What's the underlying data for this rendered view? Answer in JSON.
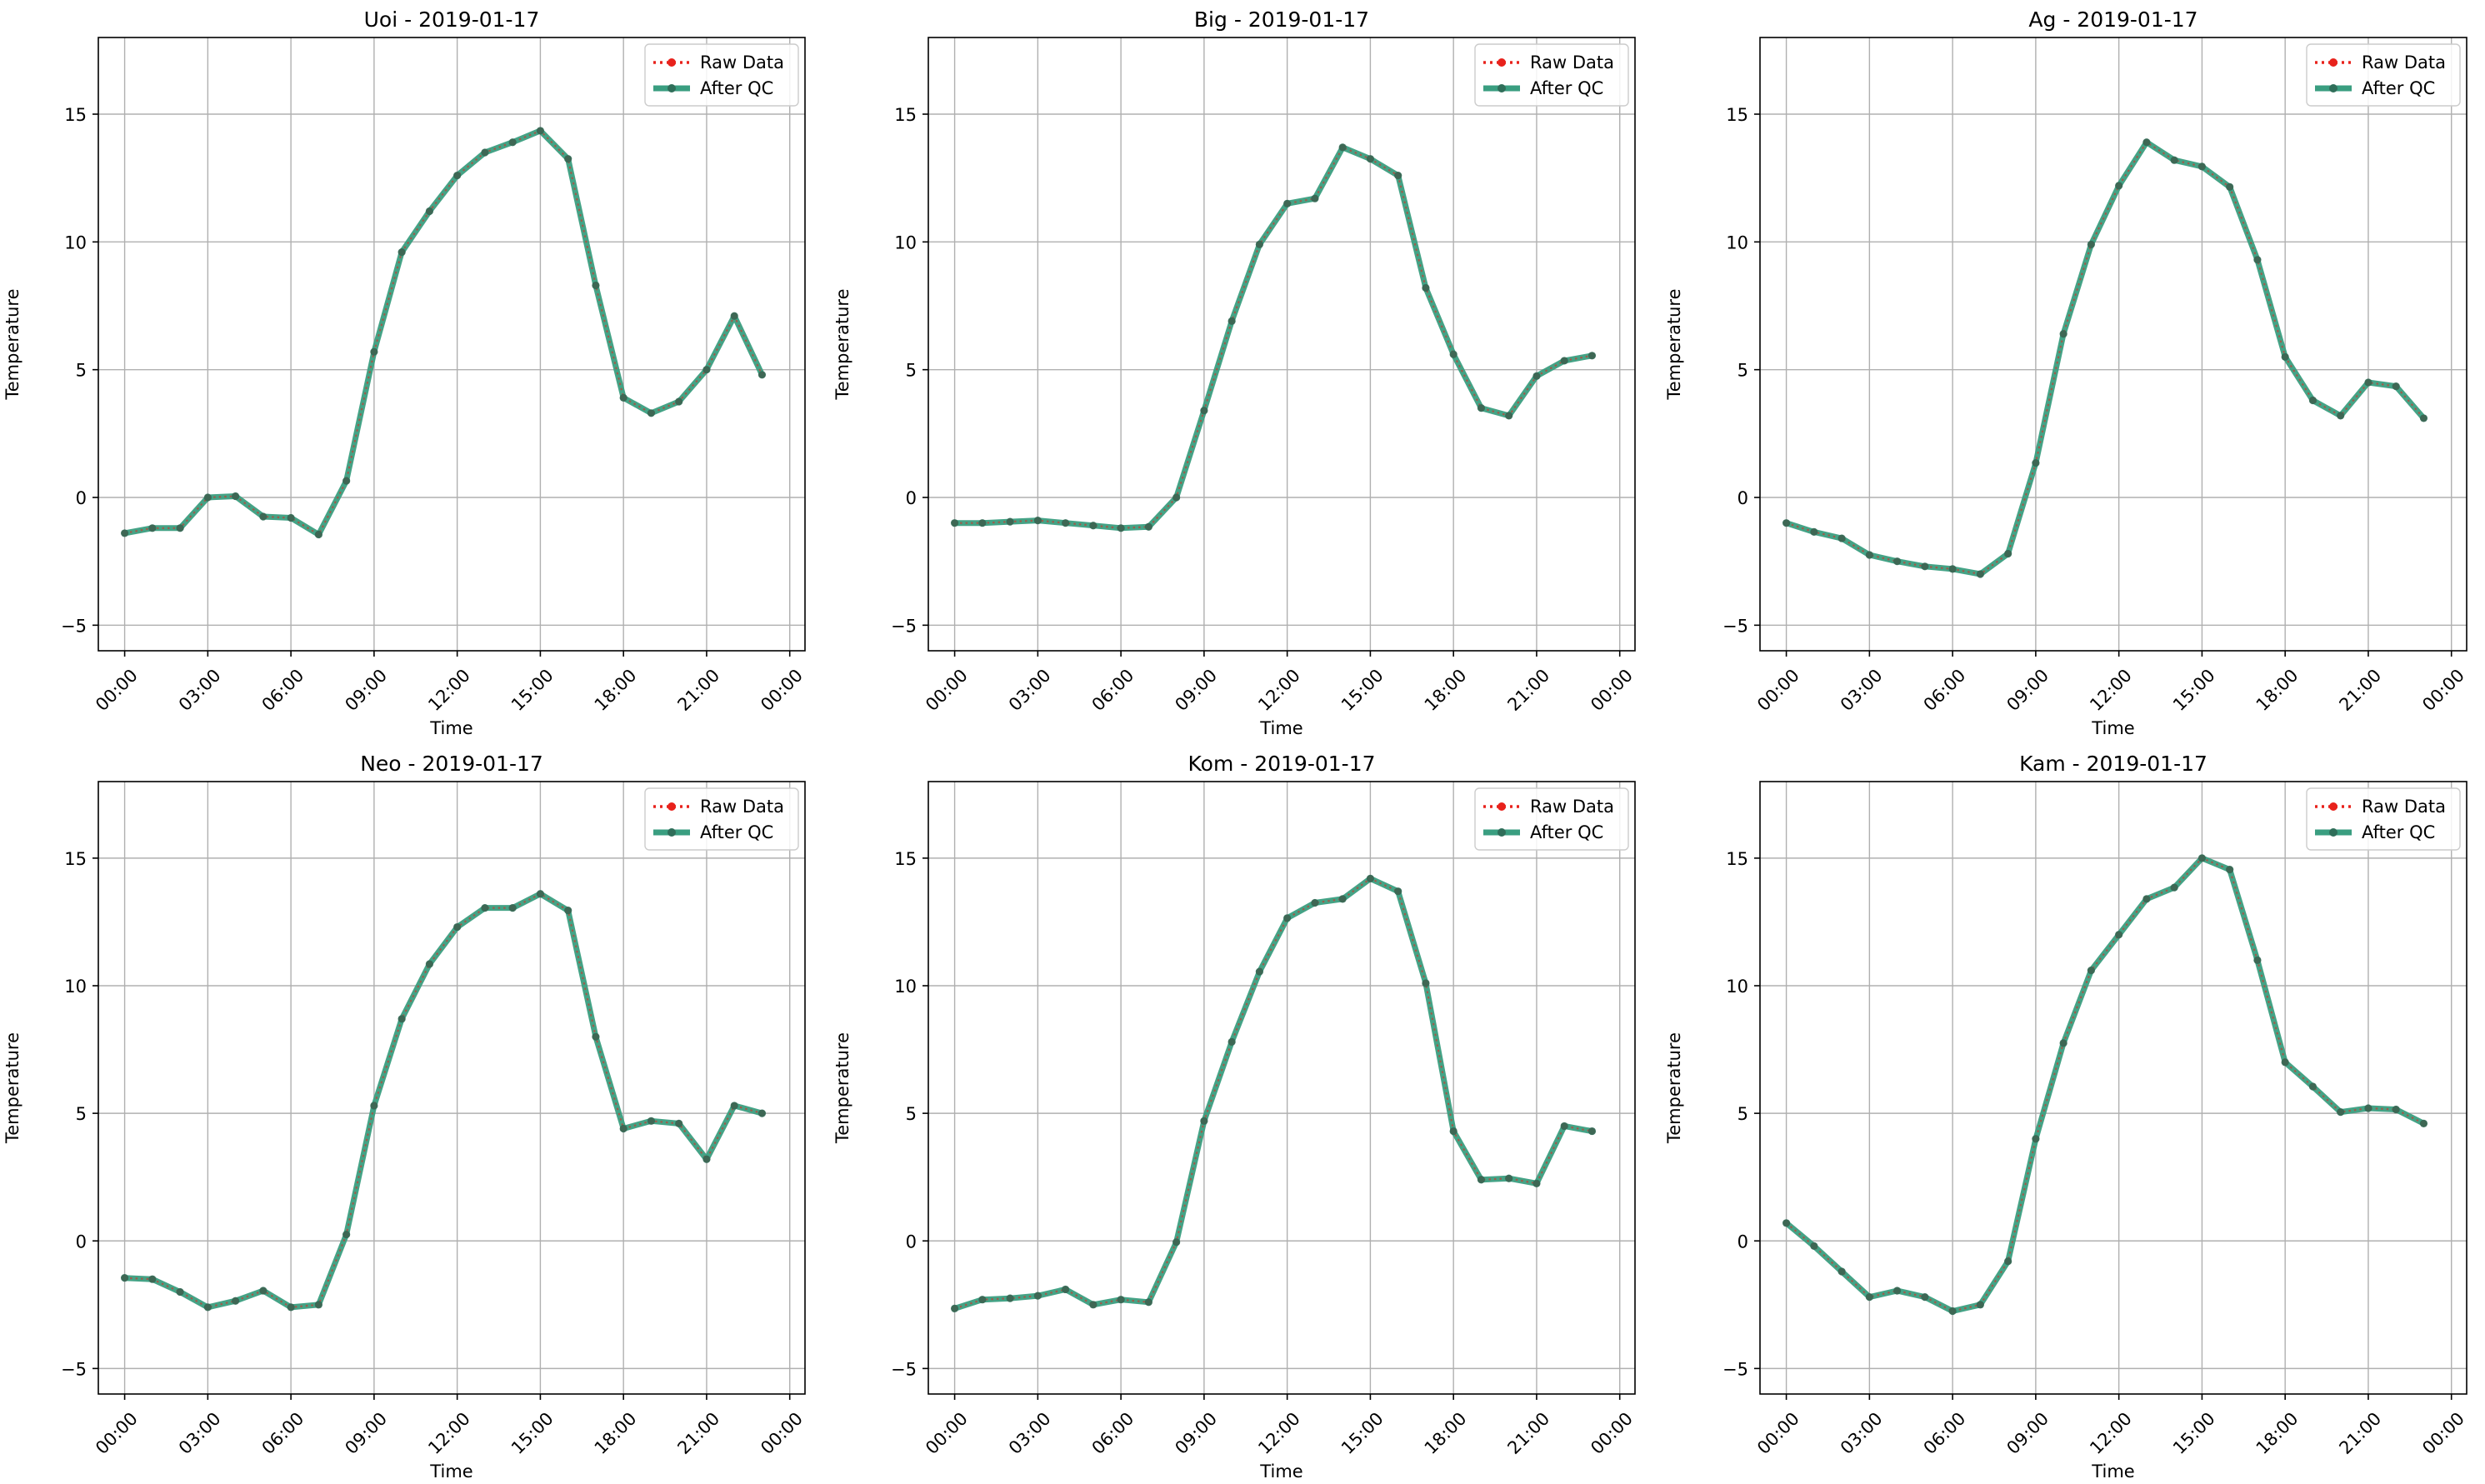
{
  "chart_data": [
    {
      "type": "line",
      "title": "Uoi - 2019-01-17",
      "xlabel": "Time",
      "ylabel": "Temperature",
      "xticks": [
        "00:00",
        "03:00",
        "06:00",
        "09:00",
        "12:00",
        "15:00",
        "18:00",
        "21:00",
        "00:00"
      ],
      "yticks": [
        -5,
        0,
        5,
        10,
        15
      ],
      "ylim": [
        -6,
        18
      ],
      "x_hours": [
        0,
        1,
        2,
        3,
        4,
        5,
        6,
        7,
        8,
        9,
        10,
        11,
        12,
        13,
        14,
        15,
        16,
        17,
        18,
        19,
        20,
        21,
        22,
        23
      ],
      "grid": true,
      "legend": {
        "position": "top-right",
        "entries": [
          "Raw Data",
          "After QC"
        ]
      },
      "series": [
        {
          "name": "Raw Data",
          "values": [
            -1.4,
            -1.2,
            -1.2,
            0.0,
            0.05,
            -0.75,
            -0.8,
            -1.45,
            0.65,
            5.7,
            9.6,
            11.2,
            12.6,
            13.5,
            13.9,
            14.35,
            13.25,
            8.3,
            3.9,
            3.3,
            3.75,
            5.0,
            7.1,
            4.8
          ]
        },
        {
          "name": "After QC",
          "values": [
            -1.4,
            -1.2,
            -1.2,
            0.0,
            0.05,
            -0.75,
            -0.8,
            -1.45,
            0.65,
            5.7,
            9.6,
            11.2,
            12.6,
            13.5,
            13.9,
            14.35,
            13.25,
            8.3,
            3.9,
            3.3,
            3.75,
            5.0,
            7.1,
            4.8
          ]
        }
      ]
    },
    {
      "type": "line",
      "title": "Big - 2019-01-17",
      "xlabel": "Time",
      "ylabel": "Temperature",
      "xticks": [
        "00:00",
        "03:00",
        "06:00",
        "09:00",
        "12:00",
        "15:00",
        "18:00",
        "21:00",
        "00:00"
      ],
      "yticks": [
        -5,
        0,
        5,
        10,
        15
      ],
      "ylim": [
        -6,
        18
      ],
      "x_hours": [
        0,
        1,
        2,
        3,
        4,
        5,
        6,
        7,
        8,
        9,
        10,
        11,
        12,
        13,
        14,
        15,
        16,
        17,
        18,
        19,
        20,
        21,
        22,
        23
      ],
      "grid": true,
      "legend": {
        "position": "top-right",
        "entries": [
          "Raw Data",
          "After QC"
        ]
      },
      "series": [
        {
          "name": "Raw Data",
          "values": [
            -1.0,
            -1.0,
            -0.95,
            -0.9,
            -1.0,
            -1.1,
            -1.2,
            -1.15,
            0.0,
            3.4,
            6.9,
            9.9,
            11.5,
            11.7,
            13.7,
            13.25,
            12.6,
            8.2,
            5.6,
            3.5,
            3.2,
            4.75,
            5.35,
            5.55
          ]
        },
        {
          "name": "After QC",
          "values": [
            -1.0,
            -1.0,
            -0.95,
            -0.9,
            -1.0,
            -1.1,
            -1.2,
            -1.15,
            0.0,
            3.4,
            6.9,
            9.9,
            11.5,
            11.7,
            13.7,
            13.25,
            12.6,
            8.2,
            5.6,
            3.5,
            3.2,
            4.75,
            5.35,
            5.55
          ]
        }
      ]
    },
    {
      "type": "line",
      "title": "Ag - 2019-01-17",
      "xlabel": "Time",
      "ylabel": "Temperature",
      "xticks": [
        "00:00",
        "03:00",
        "06:00",
        "09:00",
        "12:00",
        "15:00",
        "18:00",
        "21:00",
        "00:00"
      ],
      "yticks": [
        -5,
        0,
        5,
        10,
        15
      ],
      "ylim": [
        -6,
        18
      ],
      "x_hours": [
        0,
        1,
        2,
        3,
        4,
        5,
        6,
        7,
        8,
        9,
        10,
        11,
        12,
        13,
        14,
        15,
        16,
        17,
        18,
        19,
        20,
        21,
        22,
        23
      ],
      "grid": true,
      "legend": {
        "position": "top-right",
        "entries": [
          "Raw Data",
          "After QC"
        ]
      },
      "series": [
        {
          "name": "Raw Data",
          "values": [
            -1.0,
            -1.35,
            -1.6,
            -2.25,
            -2.5,
            -2.7,
            -2.8,
            -3.0,
            -2.2,
            1.35,
            6.4,
            9.9,
            12.2,
            13.9,
            13.2,
            12.95,
            12.15,
            9.3,
            5.5,
            3.8,
            3.2,
            4.5,
            4.35,
            3.1
          ]
        },
        {
          "name": "After QC",
          "values": [
            -1.0,
            -1.35,
            -1.6,
            -2.25,
            -2.5,
            -2.7,
            -2.8,
            -3.0,
            -2.2,
            1.35,
            6.4,
            9.9,
            12.2,
            13.9,
            13.2,
            12.95,
            12.15,
            9.3,
            5.5,
            3.8,
            3.2,
            4.5,
            4.35,
            3.1
          ]
        }
      ]
    },
    {
      "type": "line",
      "title": "Neo - 2019-01-17",
      "xlabel": "Time",
      "ylabel": "Temperature",
      "xticks": [
        "00:00",
        "03:00",
        "06:00",
        "09:00",
        "12:00",
        "15:00",
        "18:00",
        "21:00",
        "00:00"
      ],
      "yticks": [
        -5,
        0,
        5,
        10,
        15
      ],
      "ylim": [
        -6,
        18
      ],
      "x_hours": [
        0,
        1,
        2,
        3,
        4,
        5,
        6,
        7,
        8,
        9,
        10,
        11,
        12,
        13,
        14,
        15,
        16,
        17,
        18,
        19,
        20,
        21,
        22,
        23
      ],
      "grid": true,
      "legend": {
        "position": "top-right",
        "entries": [
          "Raw Data",
          "After QC"
        ]
      },
      "series": [
        {
          "name": "Raw Data",
          "values": [
            -1.45,
            -1.5,
            -2.0,
            -2.6,
            -2.35,
            -1.95,
            -2.6,
            -2.5,
            0.25,
            5.3,
            8.7,
            10.85,
            12.3,
            13.05,
            13.05,
            13.6,
            12.95,
            8.0,
            4.4,
            4.7,
            4.6,
            3.2,
            5.3,
            5.0
          ]
        },
        {
          "name": "After QC",
          "values": [
            -1.45,
            -1.5,
            -2.0,
            -2.6,
            -2.35,
            -1.95,
            -2.6,
            -2.5,
            0.25,
            5.3,
            8.7,
            10.85,
            12.3,
            13.05,
            13.05,
            13.6,
            12.95,
            8.0,
            4.4,
            4.7,
            4.6,
            3.2,
            5.3,
            5.0
          ]
        }
      ]
    },
    {
      "type": "line",
      "title": "Kom - 2019-01-17",
      "xlabel": "Time",
      "ylabel": "Temperature",
      "xticks": [
        "00:00",
        "03:00",
        "06:00",
        "09:00",
        "12:00",
        "15:00",
        "18:00",
        "21:00",
        "00:00"
      ],
      "yticks": [
        -5,
        0,
        5,
        10,
        15
      ],
      "ylim": [
        -6,
        18
      ],
      "x_hours": [
        0,
        1,
        2,
        3,
        4,
        5,
        6,
        7,
        8,
        9,
        10,
        11,
        12,
        13,
        14,
        15,
        16,
        17,
        18,
        19,
        20,
        21,
        22,
        23
      ],
      "grid": true,
      "legend": {
        "position": "top-right",
        "entries": [
          "Raw Data",
          "After QC"
        ]
      },
      "series": [
        {
          "name": "Raw Data",
          "values": [
            -2.65,
            -2.3,
            -2.25,
            -2.15,
            -1.9,
            -2.5,
            -2.3,
            -2.4,
            -0.05,
            4.7,
            7.8,
            10.55,
            12.65,
            13.25,
            13.4,
            14.2,
            13.7,
            10.1,
            4.3,
            2.4,
            2.45,
            2.25,
            4.5,
            4.3
          ]
        },
        {
          "name": "After QC",
          "values": [
            -2.65,
            -2.3,
            -2.25,
            -2.15,
            -1.9,
            -2.5,
            -2.3,
            -2.4,
            -0.05,
            4.7,
            7.8,
            10.55,
            12.65,
            13.25,
            13.4,
            14.2,
            13.7,
            10.1,
            4.3,
            2.4,
            2.45,
            2.25,
            4.5,
            4.3
          ]
        }
      ]
    },
    {
      "type": "line",
      "title": "Kam - 2019-01-17",
      "xlabel": "Time",
      "ylabel": "Temperature",
      "xticks": [
        "00:00",
        "03:00",
        "06:00",
        "09:00",
        "12:00",
        "15:00",
        "18:00",
        "21:00",
        "00:00"
      ],
      "yticks": [
        -5,
        0,
        5,
        10,
        15
      ],
      "ylim": [
        -6,
        18
      ],
      "x_hours": [
        0,
        1,
        2,
        3,
        4,
        5,
        6,
        7,
        8,
        9,
        10,
        11,
        12,
        13,
        14,
        15,
        16,
        17,
        18,
        19,
        20,
        21,
        22,
        23
      ],
      "grid": true,
      "legend": {
        "position": "top-right",
        "entries": [
          "Raw Data",
          "After QC"
        ]
      },
      "series": [
        {
          "name": "Raw Data",
          "values": [
            0.7,
            -0.2,
            -1.2,
            -2.2,
            -1.95,
            -2.2,
            -2.75,
            -2.5,
            -0.8,
            4.0,
            7.75,
            10.6,
            12.0,
            13.4,
            13.85,
            15.0,
            14.55,
            11.0,
            7.0,
            6.05,
            5.05,
            5.2,
            5.15,
            4.6
          ]
        },
        {
          "name": "After QC",
          "values": [
            0.7,
            -0.2,
            -1.2,
            -2.2,
            -1.95,
            -2.2,
            -2.75,
            -2.5,
            -0.8,
            4.0,
            7.75,
            10.6,
            12.0,
            13.4,
            13.85,
            15.0,
            14.55,
            11.0,
            7.0,
            6.05,
            5.05,
            5.2,
            5.15,
            4.6
          ]
        }
      ]
    }
  ],
  "colors": {
    "raw": "#e8221c",
    "qc_line": "#3a9e80",
    "qc_marker": "#2f6e59",
    "grid": "#b0b0b0",
    "axis": "#000000"
  }
}
